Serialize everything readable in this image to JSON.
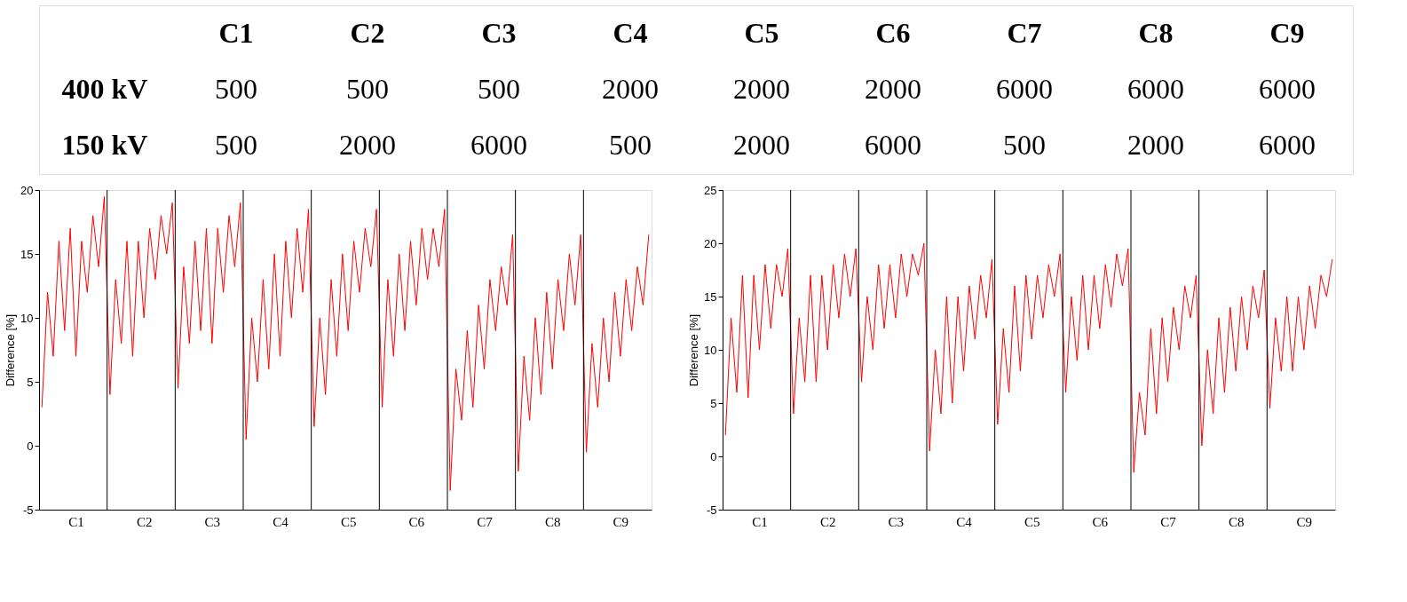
{
  "chart_data": [
    {
      "type": "other",
      "annotations": [
        "C1",
        "C2",
        "C3",
        "C4",
        "C5",
        "C6",
        "C7",
        "C8",
        "C9",
        "400 kV",
        "500",
        "500",
        "500",
        "2000",
        "2000",
        "2000",
        "6000",
        "6000",
        "6000",
        "150 kV",
        "500",
        "2000",
        "6000",
        "500",
        "2000",
        "6000",
        "500",
        "2000",
        "6000"
      ]
    },
    {
      "type": "line",
      "ylabel": "Difference [%]",
      "ylim": [
        -5,
        20
      ],
      "yticks": [
        -5,
        0,
        5,
        10,
        15,
        20
      ],
      "categories": [
        null,
        null,
        null,
        null,
        null,
        null,
        "C1",
        null,
        null,
        null,
        null,
        null,
        null,
        null,
        null,
        null,
        null,
        null,
        "C2",
        null,
        null,
        null,
        null,
        null,
        null,
        null,
        null,
        null,
        null,
        null,
        "C3",
        null,
        null,
        null,
        null,
        null,
        null,
        null,
        null,
        null,
        null,
        null,
        "C4",
        null,
        null,
        null,
        null,
        null,
        null,
        null,
        null,
        null,
        null,
        null,
        "C5",
        null,
        null,
        null,
        null,
        null,
        null,
        null,
        null,
        null,
        null,
        null,
        "C6",
        null,
        null,
        null,
        null,
        null,
        null,
        null,
        null,
        null,
        null,
        null,
        "C7",
        null,
        null,
        null,
        null,
        null,
        null,
        null,
        null,
        null,
        null,
        null,
        "C8",
        null,
        null,
        null,
        null,
        null,
        null,
        null,
        null,
        null,
        null,
        null,
        "C9",
        null,
        null,
        null,
        null,
        null
      ],
      "line_style": "solid",
      "grid": false,
      "series": [
        {
          "color": "#ff0000",
          "values": [
            3,
            12,
            7,
            16,
            9,
            17,
            7,
            16,
            12,
            18,
            14,
            19.5,
            4,
            13,
            8,
            16,
            7,
            16,
            10,
            17,
            13,
            18,
            15,
            19,
            4.5,
            14,
            8,
            16,
            9,
            17,
            8,
            17,
            12,
            18,
            14,
            19,
            0.5,
            10,
            5,
            13,
            6,
            15,
            7,
            16,
            10,
            17,
            12,
            18.5,
            1.5,
            10,
            4,
            13,
            7,
            15,
            9,
            16,
            12,
            17,
            14,
            18.5,
            3,
            13,
            7,
            15,
            9,
            16,
            11,
            17,
            13,
            17,
            14,
            18.5,
            -3.5,
            6,
            2,
            9,
            3,
            11,
            6,
            13,
            9,
            14,
            11,
            16.5,
            -2,
            7,
            2,
            10,
            4,
            12,
            6,
            13,
            9,
            15,
            11,
            16.5,
            -0.5,
            8,
            3,
            10,
            5,
            12,
            7,
            13,
            9,
            14,
            11,
            16.5
          ]
        }
      ]
    },
    {
      "type": "line",
      "ylabel": "Difference [%]",
      "ylim": [
        -5,
        25
      ],
      "yticks": [
        -5,
        0,
        5,
        10,
        15,
        20,
        25
      ],
      "categories": [
        null,
        null,
        null,
        null,
        null,
        null,
        "C1",
        null,
        null,
        null,
        null,
        null,
        null,
        null,
        null,
        null,
        null,
        null,
        "C2",
        null,
        null,
        null,
        null,
        null,
        null,
        null,
        null,
        null,
        null,
        null,
        "C3",
        null,
        null,
        null,
        null,
        null,
        null,
        null,
        null,
        null,
        null,
        null,
        "C4",
        null,
        null,
        null,
        null,
        null,
        null,
        null,
        null,
        null,
        null,
        null,
        "C5",
        null,
        null,
        null,
        null,
        null,
        null,
        null,
        null,
        null,
        null,
        null,
        "C6",
        null,
        null,
        null,
        null,
        null,
        null,
        null,
        null,
        null,
        null,
        null,
        "C7",
        null,
        null,
        null,
        null,
        null,
        null,
        null,
        null,
        null,
        null,
        null,
        "C8",
        null,
        null,
        null,
        null,
        null,
        null,
        null,
        null,
        null,
        null,
        null,
        "C9",
        null,
        null,
        null,
        null,
        null
      ],
      "line_style": "solid",
      "grid": false,
      "series": [
        {
          "color": "#ff0000",
          "values": [
            2,
            13,
            6,
            17,
            5.5,
            17,
            10,
            18,
            12,
            18,
            15,
            19.5,
            4,
            13,
            7,
            17,
            7,
            17,
            10,
            18,
            13,
            19,
            15,
            19.5,
            7,
            15,
            10,
            18,
            12,
            18,
            13,
            19,
            15,
            19,
            17,
            20,
            0.5,
            10,
            4,
            15,
            5,
            15,
            8,
            16,
            11,
            17,
            13,
            18.5,
            3,
            12,
            6,
            16,
            8,
            17,
            11,
            17,
            13,
            18,
            15,
            19,
            6,
            15,
            9,
            17,
            10,
            17,
            12,
            18,
            14,
            19,
            16,
            19.5,
            -1.5,
            6,
            2,
            12,
            4,
            13,
            7,
            14,
            10,
            16,
            13,
            17,
            1,
            10,
            4,
            13,
            6,
            14,
            8,
            15,
            10,
            16,
            13,
            17.5,
            4.5,
            13,
            8,
            15,
            8,
            15,
            10,
            16,
            12,
            17,
            15,
            18.5
          ]
        }
      ]
    }
  ]
}
